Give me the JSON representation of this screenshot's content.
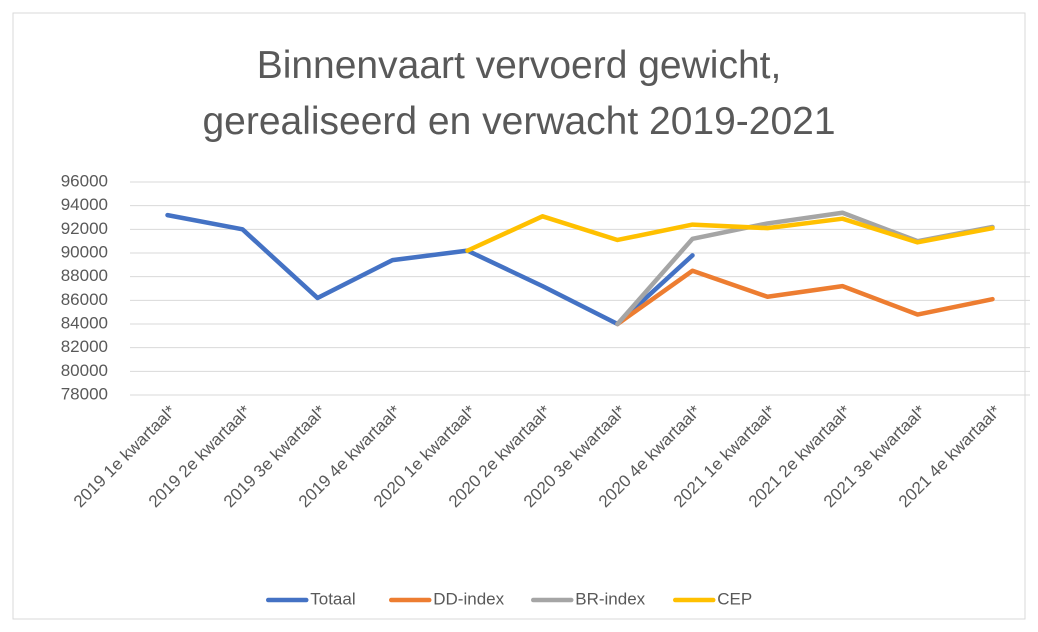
{
  "chart_data": {
    "type": "line",
    "title": "Binnenvaart vervoerd gewicht, gerealiseerd en verwacht 2019-2021",
    "categories": [
      "2019 1e kwartaal*",
      "2019 2e kwartaal*",
      "2019 3e kwartaal*",
      "2019 4e kwartaal*",
      "2020 1e kwartaal*",
      "2020 2e kwartaal*",
      "2020 3e kwartaal*",
      "2020 4e kwartaal*",
      "2021 1e kwartaal*",
      "2021 2e kwartaal*",
      "2021 3e kwartaal*",
      "2021 4e kwartaal*"
    ],
    "series": [
      {
        "name": "Totaal",
        "color": "#4472c4",
        "values": [
          93200,
          92000,
          86200,
          89400,
          90200,
          87200,
          84000,
          89800,
          null,
          null,
          null,
          null
        ]
      },
      {
        "name": "DD-index",
        "color": "#ed7d31",
        "values": [
          null,
          null,
          null,
          null,
          null,
          null,
          84000,
          88500,
          86300,
          87200,
          84800,
          86100
        ]
      },
      {
        "name": "BR-index",
        "color": "#a5a5a5",
        "values": [
          null,
          null,
          null,
          null,
          null,
          null,
          84000,
          91200,
          92500,
          93400,
          91000,
          92200
        ]
      },
      {
        "name": "CEP",
        "color": "#ffc000",
        "values": [
          null,
          null,
          null,
          null,
          90200,
          93100,
          91100,
          92400,
          92100,
          92900,
          90900,
          92100
        ]
      }
    ],
    "ylim": [
      78000,
      96000
    ],
    "yticks": [
      78000,
      80000,
      82000,
      84000,
      86000,
      88000,
      90000,
      92000,
      94000,
      96000
    ],
    "grid": true,
    "legend": "bottom"
  }
}
